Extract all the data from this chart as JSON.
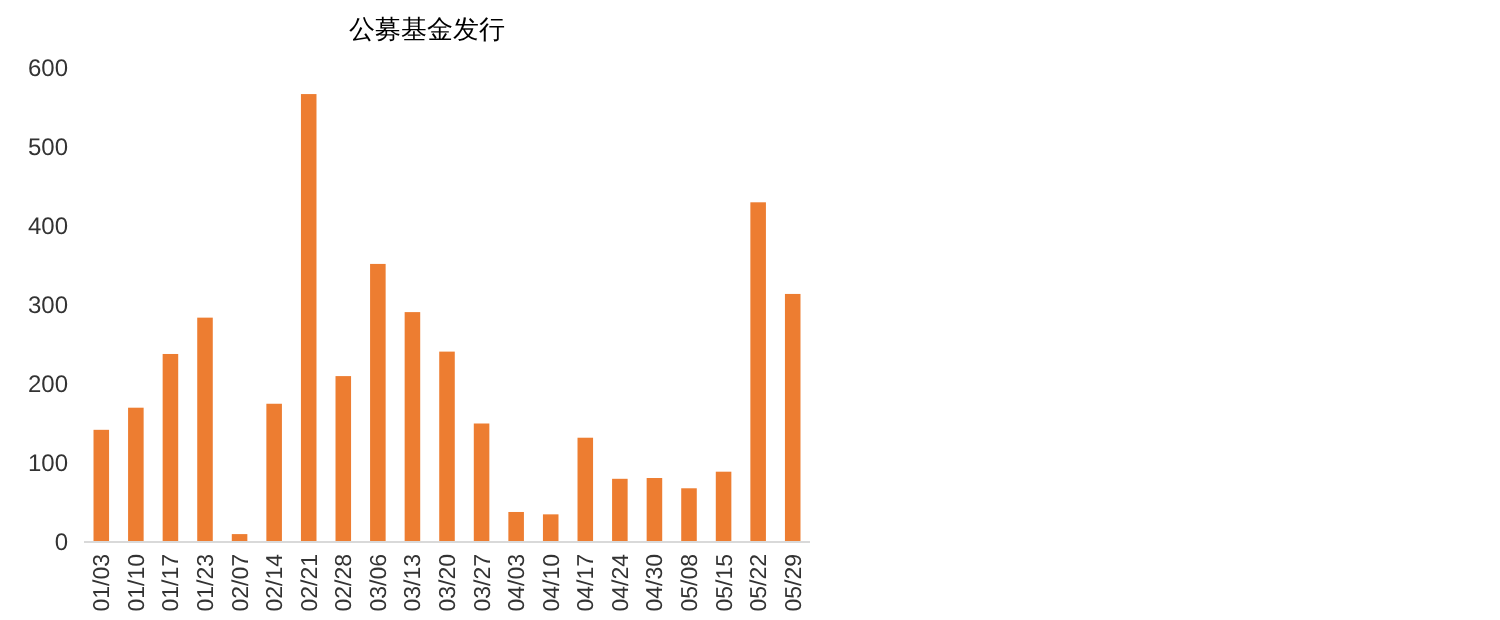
{
  "chart_data": {
    "type": "bar",
    "title": "公募基金发行",
    "categories": [
      "01/03",
      "01/10",
      "01/17",
      "01/23",
      "02/07",
      "02/14",
      "02/21",
      "02/28",
      "03/06",
      "03/13",
      "03/20",
      "03/27",
      "04/03",
      "04/10",
      "04/17",
      "04/24",
      "04/30",
      "05/08",
      "05/15",
      "05/22",
      "05/29"
    ],
    "values": [
      142,
      170,
      238,
      284,
      10,
      175,
      567,
      210,
      352,
      291,
      241,
      150,
      38,
      35,
      132,
      80,
      81,
      68,
      89,
      430,
      314
    ],
    "color": "#ed7d31",
    "ylim": [
      0,
      600
    ],
    "yticks": [
      0,
      100,
      200,
      300,
      400,
      500,
      600
    ]
  }
}
